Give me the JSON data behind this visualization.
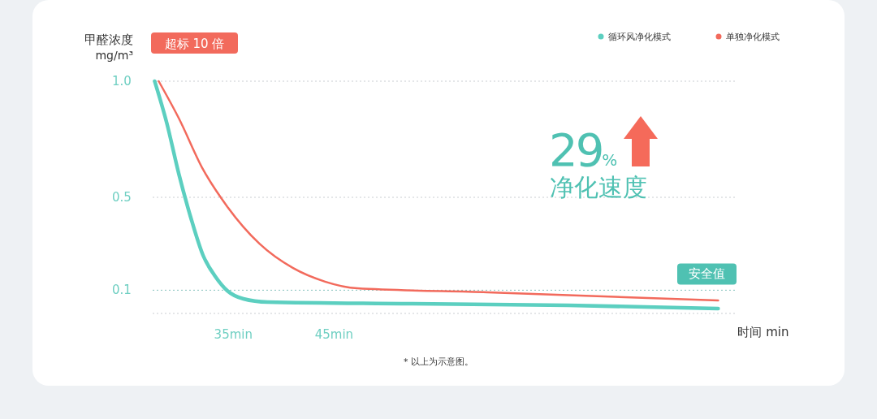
{
  "chart_data": {
    "type": "line",
    "ylabel": "甲醛浓度 mg/m³",
    "xlabel": "时间 min",
    "xlim": [
      27,
      85
    ],
    "xticks": [
      {
        "value": 35,
        "label": "35min"
      },
      {
        "value": 45,
        "label": "45min"
      }
    ],
    "ylim": [
      0,
      1
    ],
    "yticks": [
      {
        "value": 1,
        "label": "1.0"
      },
      0.5,
      0.1
    ],
    "grid": "y",
    "legend": "top right",
    "line_style": "solid",
    "ref_lines": [
      {
        "axis": "y",
        "value": 0.1,
        "label": "安全值",
        "color": "#4fc1b2",
        "line_style": "dotted"
      }
    ],
    "series": [
      {
        "name": "循环风净化模式",
        "color": "#5ccfc0",
        "x": [
          27.2,
          28.4,
          29.6,
          30.8,
          32.0,
          33.2,
          34.4,
          36.0,
          38.4,
          52.1,
          68.2,
          83.1
        ],
        "values": [
          1.0,
          0.82,
          0.6,
          0.41,
          0.25,
          0.16,
          0.098,
          0.063,
          0.049,
          0.042,
          0.035,
          0.021
        ]
      },
      {
        "name": "单独净化模式",
        "color": "#f26a5c",
        "x": [
          27.6,
          29.6,
          32.0,
          34.4,
          37.6,
          40.9,
          44.1,
          47.3,
          60.2,
          83.1
        ],
        "values": [
          1.0,
          0.84,
          0.62,
          0.46,
          0.3,
          0.196,
          0.137,
          0.108,
          0.091,
          0.056
        ]
      }
    ],
    "annotations": [
      "超标 10 倍",
      "29%",
      "净化速度",
      "* 以上为示意图。"
    ]
  }
}
